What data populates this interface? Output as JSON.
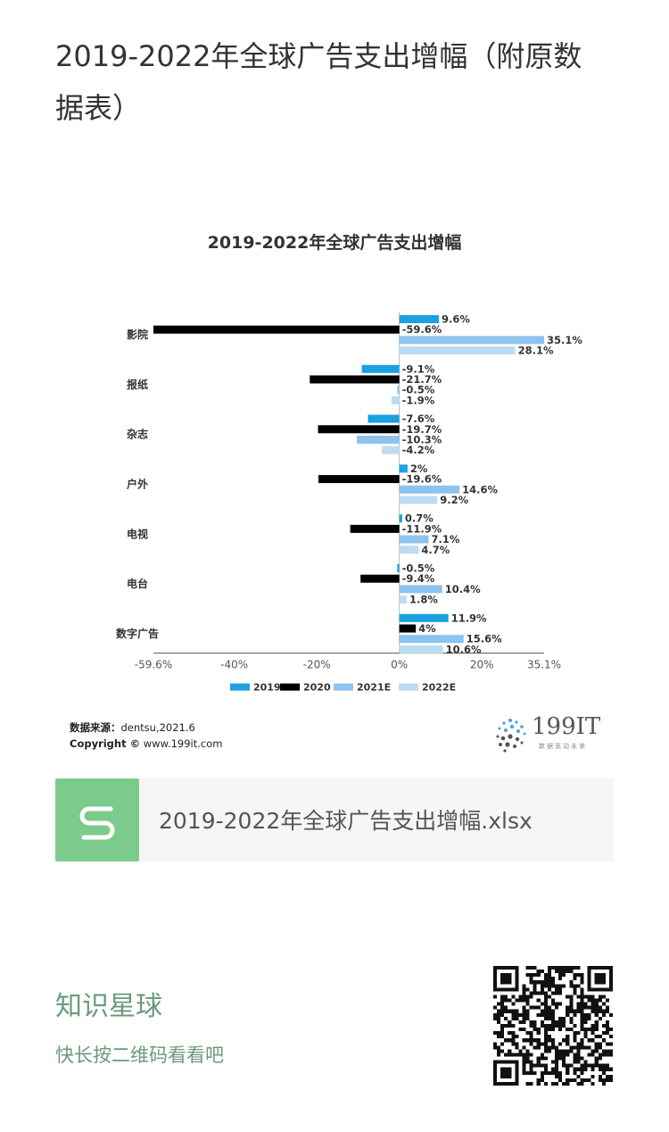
{
  "article": {
    "title": "2019-2022年全球广告支出增幅（附原数据表）"
  },
  "chart_data": {
    "type": "bar",
    "orientation": "horizontal",
    "title": "2019-2022年全球广告支出增幅",
    "categories": [
      "影院",
      "报纸",
      "杂志",
      "户外",
      "电视",
      "电台",
      "数字广告"
    ],
    "series": [
      {
        "name": "2019",
        "color": "#1ba1e2",
        "values": [
          9.6,
          -9.1,
          -7.6,
          2,
          0.7,
          -0.5,
          11.9
        ],
        "labels": [
          "9.6%",
          "-9.1%",
          "-7.6%",
          "2%",
          "0.7%",
          "-0.5%",
          "11.9%"
        ]
      },
      {
        "name": "2020",
        "color": "#000000",
        "values": [
          -59.6,
          -21.7,
          -19.7,
          -19.6,
          -11.9,
          -9.4,
          4
        ],
        "labels": [
          "-59.6%",
          "-21.7%",
          "-19.7%",
          "-19.6%",
          "-11.9%",
          "-9.4%",
          "4%"
        ]
      },
      {
        "name": "2021E",
        "color": "#8ec3ee",
        "values": [
          35.1,
          -0.5,
          -10.3,
          14.6,
          7.1,
          10.4,
          15.6
        ],
        "labels": [
          "35.1%",
          "-0.5%",
          "-10.3%",
          "14.6%",
          "7.1%",
          "10.4%",
          "15.6%"
        ]
      },
      {
        "name": "2022E",
        "color": "#bcdcf4",
        "values": [
          28.1,
          -1.9,
          -4.2,
          9.2,
          4.7,
          1.8,
          10.6
        ],
        "labels": [
          "28.1%",
          "-1.9%",
          "-4.2%",
          "9.2%",
          "4.7%",
          "1.8%",
          "10.6%"
        ]
      }
    ],
    "xlim": [
      -59.6,
      35.1
    ],
    "xticks": [
      -59.6,
      -40,
      -20,
      0,
      20,
      35.1
    ],
    "xtick_labels": [
      "-59.6%",
      "-40%",
      "-20%",
      "0%",
      "20%",
      "35.1%"
    ],
    "legend": "bottom"
  },
  "source": {
    "label": "数据来源：",
    "value": "dentsu,2021.6"
  },
  "copyright": {
    "label": "Copyright ©",
    "value": "www.199it.com"
  },
  "brand": {
    "name": "199IT",
    "tagline": "数据驱动未来"
  },
  "file": {
    "name": "2019-2022年全球广告支出增幅.xlsx"
  },
  "footer": {
    "title": "知识星球",
    "subtitle": "快长按二维码看看吧"
  }
}
